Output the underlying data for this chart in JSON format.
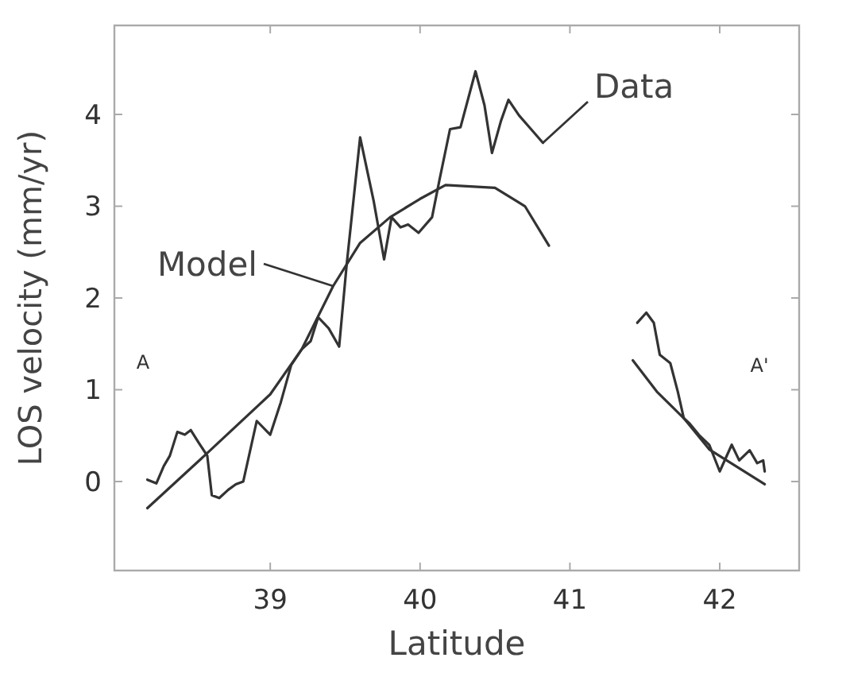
{
  "chart_data": {
    "type": "line",
    "xlabel": "Latitude",
    "ylabel": "LOS velocity (mm/yr)",
    "xlim": [
      37.96,
      42.53
    ],
    "ylim": [
      -0.97,
      4.97
    ],
    "xticks": [
      39,
      40,
      41,
      42
    ],
    "yticks": [
      0,
      1,
      2,
      3,
      4
    ],
    "grid": false,
    "marker": "none",
    "line_style": "solid",
    "annotations": [
      "A",
      "A'"
    ],
    "series": [
      {
        "name": "Data",
        "color": "#333333",
        "x": [
          38.18,
          38.24,
          38.29,
          38.33,
          38.38,
          38.43,
          38.47,
          38.52,
          38.58,
          38.61,
          38.66,
          38.72,
          38.77,
          38.82,
          38.91,
          39.0,
          39.07,
          39.14,
          39.21,
          39.27,
          39.32,
          39.39,
          39.46,
          39.51,
          39.6,
          39.69,
          39.76,
          39.81,
          39.87,
          39.92,
          39.99,
          40.08,
          40.13,
          40.2,
          40.27,
          40.37,
          40.43,
          40.48,
          40.54,
          40.59,
          40.66,
          40.73,
          40.82,
          null,
          41.45,
          41.51,
          41.56,
          41.6,
          41.67,
          41.72,
          41.76,
          41.8,
          41.86,
          41.93,
          42.0,
          42.08,
          42.13,
          42.2,
          42.25,
          42.29,
          42.3
        ],
        "values": [
          0.02,
          -0.02,
          0.17,
          0.28,
          0.54,
          0.51,
          0.56,
          0.43,
          0.28,
          -0.15,
          -0.18,
          -0.09,
          -0.03,
          0,
          0.66,
          0.51,
          0.86,
          1.27,
          1.44,
          1.53,
          1.79,
          1.67,
          1.47,
          2.36,
          3.75,
          3.06,
          2.42,
          2.88,
          2.77,
          2.8,
          2.71,
          2.88,
          3.29,
          3.84,
          3.86,
          4.47,
          4.1,
          3.58,
          3.93,
          4.16,
          3.99,
          3.86,
          3.69,
          null,
          1.73,
          1.84,
          1.73,
          1.38,
          1.29,
          0.98,
          0.69,
          0.63,
          0.51,
          0.4,
          0.11,
          0.4,
          0.23,
          0.34,
          0.2,
          0.23,
          0.11
        ]
      },
      {
        "name": "Model",
        "color": "#333333",
        "x": [
          38.18,
          38.58,
          39.0,
          39.21,
          39.42,
          39.6,
          39.8,
          40.0,
          40.17,
          40.5,
          40.7,
          40.86,
          null,
          41.42,
          41.58,
          41.76,
          41.93,
          42.3
        ],
        "values": [
          -0.29,
          0.31,
          0.95,
          1.44,
          2.13,
          2.6,
          2.88,
          3.08,
          3.23,
          3.2,
          3.0,
          2.57,
          null,
          1.32,
          0.98,
          0.69,
          0.35,
          -0.03
        ]
      }
    ]
  }
}
